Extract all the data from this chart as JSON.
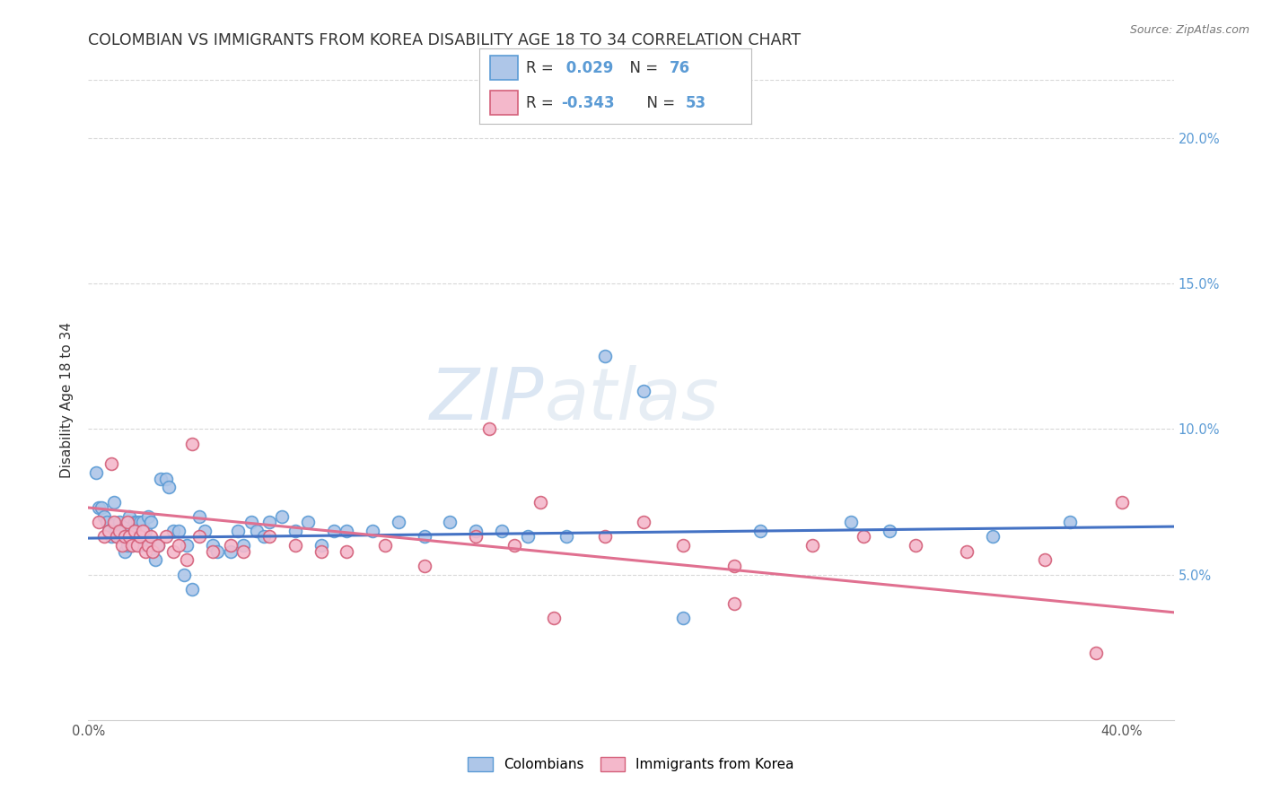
{
  "title": "COLOMBIAN VS IMMIGRANTS FROM KOREA DISABILITY AGE 18 TO 34 CORRELATION CHART",
  "source": "Source: ZipAtlas.com",
  "ylabel": "Disability Age 18 to 34",
  "xlim": [
    0.0,
    0.42
  ],
  "ylim": [
    0.0,
    0.22
  ],
  "xticks": [
    0.0,
    0.1,
    0.2,
    0.3,
    0.4
  ],
  "xticklabels": [
    "0.0%",
    "",
    "",
    "",
    "40.0%"
  ],
  "yticks_right": [
    0.05,
    0.1,
    0.15,
    0.2
  ],
  "yticklabels_right": [
    "5.0%",
    "10.0%",
    "15.0%",
    "20.0%"
  ],
  "colombian_color": "#aec6e8",
  "colombian_edge_color": "#5b9bd5",
  "korean_color": "#f4b8cb",
  "korean_edge_color": "#d4607a",
  "colombian_line_color": "#4472c4",
  "korean_line_color": "#e07090",
  "legend_r_colombian": "0.029",
  "legend_n_colombian": "76",
  "legend_r_korean": "-0.343",
  "legend_n_korean": "53",
  "colombian_points_x": [
    0.003,
    0.004,
    0.005,
    0.006,
    0.007,
    0.008,
    0.009,
    0.01,
    0.01,
    0.011,
    0.011,
    0.012,
    0.012,
    0.013,
    0.013,
    0.014,
    0.014,
    0.015,
    0.015,
    0.016,
    0.016,
    0.017,
    0.017,
    0.018,
    0.018,
    0.019,
    0.02,
    0.02,
    0.021,
    0.022,
    0.023,
    0.024,
    0.025,
    0.026,
    0.027,
    0.028,
    0.03,
    0.031,
    0.033,
    0.035,
    0.037,
    0.038,
    0.04,
    0.043,
    0.045,
    0.048,
    0.05,
    0.055,
    0.058,
    0.06,
    0.063,
    0.065,
    0.068,
    0.07,
    0.075,
    0.08,
    0.085,
    0.09,
    0.095,
    0.1,
    0.11,
    0.12,
    0.13,
    0.14,
    0.15,
    0.16,
    0.17,
    0.185,
    0.2,
    0.215,
    0.23,
    0.26,
    0.295,
    0.31,
    0.35,
    0.38
  ],
  "colombian_points_y": [
    0.085,
    0.073,
    0.073,
    0.07,
    0.068,
    0.065,
    0.063,
    0.067,
    0.075,
    0.065,
    0.063,
    0.063,
    0.068,
    0.063,
    0.065,
    0.065,
    0.058,
    0.067,
    0.06,
    0.065,
    0.07,
    0.063,
    0.06,
    0.065,
    0.068,
    0.068,
    0.068,
    0.06,
    0.068,
    0.065,
    0.07,
    0.068,
    0.06,
    0.055,
    0.06,
    0.083,
    0.083,
    0.08,
    0.065,
    0.065,
    0.05,
    0.06,
    0.045,
    0.07,
    0.065,
    0.06,
    0.058,
    0.058,
    0.065,
    0.06,
    0.068,
    0.065,
    0.063,
    0.068,
    0.07,
    0.065,
    0.068,
    0.06,
    0.065,
    0.065,
    0.065,
    0.068,
    0.063,
    0.068,
    0.065,
    0.065,
    0.063,
    0.063,
    0.125,
    0.113,
    0.035,
    0.065,
    0.068,
    0.065,
    0.063,
    0.068
  ],
  "korean_points_x": [
    0.004,
    0.006,
    0.008,
    0.009,
    0.01,
    0.011,
    0.012,
    0.013,
    0.014,
    0.015,
    0.016,
    0.017,
    0.018,
    0.019,
    0.02,
    0.021,
    0.022,
    0.023,
    0.024,
    0.025,
    0.027,
    0.03,
    0.033,
    0.035,
    0.038,
    0.04,
    0.043,
    0.048,
    0.055,
    0.06,
    0.07,
    0.08,
    0.09,
    0.1,
    0.115,
    0.13,
    0.15,
    0.165,
    0.18,
    0.2,
    0.215,
    0.23,
    0.25,
    0.28,
    0.3,
    0.32,
    0.34,
    0.37,
    0.39,
    0.4,
    0.155,
    0.175,
    0.25
  ],
  "korean_points_y": [
    0.068,
    0.063,
    0.065,
    0.088,
    0.068,
    0.063,
    0.065,
    0.06,
    0.063,
    0.068,
    0.063,
    0.06,
    0.065,
    0.06,
    0.063,
    0.065,
    0.058,
    0.06,
    0.063,
    0.058,
    0.06,
    0.063,
    0.058,
    0.06,
    0.055,
    0.095,
    0.063,
    0.058,
    0.06,
    0.058,
    0.063,
    0.06,
    0.058,
    0.058,
    0.06,
    0.053,
    0.063,
    0.06,
    0.035,
    0.063,
    0.068,
    0.06,
    0.053,
    0.06,
    0.063,
    0.06,
    0.058,
    0.055,
    0.023,
    0.075,
    0.1,
    0.075,
    0.04
  ],
  "colombian_trend_x": [
    0.0,
    0.42
  ],
  "colombian_trend_y": [
    0.0625,
    0.0665
  ],
  "korean_trend_x": [
    0.0,
    0.42
  ],
  "korean_trend_y": [
    0.073,
    0.037
  ],
  "background_color": "#ffffff",
  "grid_color": "#d8d8d8",
  "title_fontsize": 12.5,
  "axis_label_fontsize": 11,
  "tick_fontsize": 10.5,
  "marker_size": 100
}
